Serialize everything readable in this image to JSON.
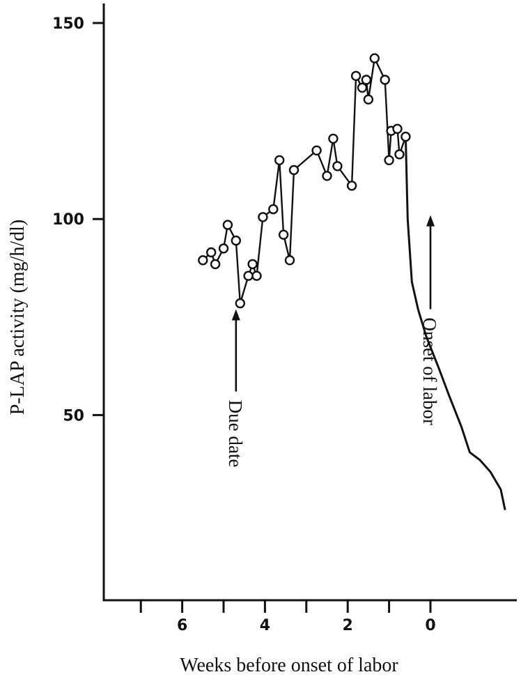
{
  "chart_data": {
    "type": "line",
    "xlabel": "Weeks before onset of labor",
    "ylabel": "P-LAP activity (mg/h/dl)",
    "x_reversed": true,
    "xlim": [
      7.6,
      -2.1
    ],
    "ylim": [
      0,
      155
    ],
    "x_ticks": [
      7,
      6,
      5,
      4,
      3,
      2,
      1,
      0
    ],
    "x_tick_labels": [
      {
        "value": 6,
        "label": "6"
      },
      {
        "value": 4,
        "label": "4"
      },
      {
        "value": 2,
        "label": "2"
      },
      {
        "value": 0,
        "label": "0"
      }
    ],
    "y_tick_labels": [
      {
        "value": 50,
        "label": "50"
      },
      {
        "value": 100,
        "label": "100"
      },
      {
        "value": 150,
        "label": "150"
      }
    ],
    "grid": false,
    "series": [
      {
        "marker": "open-circle",
        "points": [
          [
            5.5,
            89.5
          ],
          [
            5.3,
            91.5
          ],
          [
            5.2,
            88.5
          ],
          [
            5.0,
            92.5
          ],
          [
            4.9,
            98.5
          ],
          [
            4.7,
            94.5
          ],
          [
            4.6,
            78.5
          ],
          [
            4.4,
            85.5
          ],
          [
            4.3,
            88.5
          ],
          [
            4.2,
            85.5
          ],
          [
            4.05,
            100.5
          ],
          [
            3.8,
            102.5
          ],
          [
            3.65,
            115.0
          ],
          [
            3.55,
            96.0
          ],
          [
            3.4,
            89.5
          ],
          [
            3.3,
            112.5
          ],
          [
            2.75,
            117.5
          ],
          [
            2.5,
            111.0
          ],
          [
            2.35,
            120.5
          ],
          [
            2.25,
            113.5
          ],
          [
            1.9,
            108.5
          ],
          [
            1.8,
            136.5
          ],
          [
            1.65,
            133.5
          ],
          [
            1.55,
            135.5
          ],
          [
            1.5,
            130.5
          ],
          [
            1.35,
            141.0
          ],
          [
            1.1,
            135.5
          ],
          [
            1.0,
            115.0
          ],
          [
            0.95,
            122.5
          ],
          [
            0.8,
            123.0
          ],
          [
            0.75,
            116.5
          ],
          [
            0.6,
            121.0
          ]
        ]
      },
      {
        "marker": "none",
        "points": [
          [
            0.6,
            121.0
          ],
          [
            0.55,
            100.0
          ],
          [
            0.45,
            84.0
          ],
          [
            0.3,
            77.0
          ],
          [
            0.1,
            70.0
          ],
          [
            -0.2,
            62.0
          ],
          [
            -0.45,
            55.0
          ],
          [
            -0.75,
            47.0
          ],
          [
            -0.95,
            40.5
          ],
          [
            -1.2,
            38.5
          ],
          [
            -1.45,
            35.5
          ],
          [
            -1.7,
            31.0
          ],
          [
            -1.8,
            26.0
          ]
        ]
      }
    ],
    "annotations": [
      {
        "text": "Due date",
        "x": 4.7,
        "arrow_y_from": 56,
        "arrow_y_to": 77
      },
      {
        "text": "Onset of labor",
        "x": 0.0,
        "arrow_y_from": 77,
        "arrow_y_to": 101
      }
    ]
  }
}
